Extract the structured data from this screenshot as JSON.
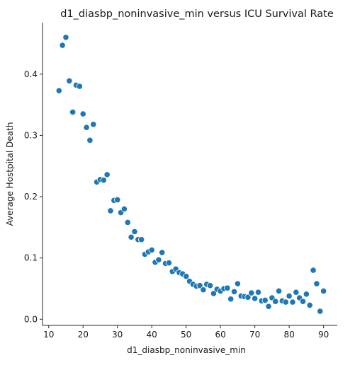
{
  "chart_data": {
    "type": "scatter",
    "title": "d1_diasbp_noninvasive_min versus ICU Survival Rate",
    "xlabel": "d1_diasbp_noninvasive_min",
    "ylabel": "Average Hostpital Death",
    "xlim": [
      8.2,
      94.0
    ],
    "ylim": [
      -0.01,
      0.484
    ],
    "xticks": [
      10,
      20,
      30,
      40,
      50,
      60,
      70,
      80,
      90
    ],
    "yticks": [
      0.0,
      0.1,
      0.2,
      0.3,
      0.4
    ],
    "ytick_labels": [
      "0.0",
      "0.1",
      "0.2",
      "0.3",
      "0.4"
    ],
    "grid": false,
    "marker_color": "#1f77b4",
    "points": [
      {
        "x": 13,
        "y": 0.373
      },
      {
        "x": 14,
        "y": 0.447
      },
      {
        "x": 15,
        "y": 0.46
      },
      {
        "x": 16,
        "y": 0.389
      },
      {
        "x": 17,
        "y": 0.338
      },
      {
        "x": 18,
        "y": 0.382
      },
      {
        "x": 19,
        "y": 0.38
      },
      {
        "x": 20,
        "y": 0.335
      },
      {
        "x": 21,
        "y": 0.313
      },
      {
        "x": 22,
        "y": 0.292
      },
      {
        "x": 23,
        "y": 0.318
      },
      {
        "x": 24,
        "y": 0.224
      },
      {
        "x": 25,
        "y": 0.228
      },
      {
        "x": 26,
        "y": 0.227
      },
      {
        "x": 27,
        "y": 0.236
      },
      {
        "x": 28,
        "y": 0.177
      },
      {
        "x": 29,
        "y": 0.194
      },
      {
        "x": 30,
        "y": 0.195
      },
      {
        "x": 31,
        "y": 0.174
      },
      {
        "x": 32,
        "y": 0.18
      },
      {
        "x": 33,
        "y": 0.158
      },
      {
        "x": 34,
        "y": 0.134
      },
      {
        "x": 35,
        "y": 0.143
      },
      {
        "x": 36,
        "y": 0.13
      },
      {
        "x": 37,
        "y": 0.13
      },
      {
        "x": 38,
        "y": 0.106
      },
      {
        "x": 39,
        "y": 0.11
      },
      {
        "x": 40,
        "y": 0.113
      },
      {
        "x": 41,
        "y": 0.093
      },
      {
        "x": 42,
        "y": 0.097
      },
      {
        "x": 43,
        "y": 0.109
      },
      {
        "x": 44,
        "y": 0.091
      },
      {
        "x": 45,
        "y": 0.092
      },
      {
        "x": 46,
        "y": 0.078
      },
      {
        "x": 47,
        "y": 0.082
      },
      {
        "x": 48,
        "y": 0.076
      },
      {
        "x": 49,
        "y": 0.074
      },
      {
        "x": 50,
        "y": 0.07
      },
      {
        "x": 51,
        "y": 0.062
      },
      {
        "x": 52,
        "y": 0.057
      },
      {
        "x": 53,
        "y": 0.054
      },
      {
        "x": 54,
        "y": 0.055
      },
      {
        "x": 55,
        "y": 0.048
      },
      {
        "x": 56,
        "y": 0.057
      },
      {
        "x": 57,
        "y": 0.055
      },
      {
        "x": 58,
        "y": 0.042
      },
      {
        "x": 59,
        "y": 0.049
      },
      {
        "x": 60,
        "y": 0.046
      },
      {
        "x": 61,
        "y": 0.05
      },
      {
        "x": 62,
        "y": 0.051
      },
      {
        "x": 63,
        "y": 0.033
      },
      {
        "x": 64,
        "y": 0.045
      },
      {
        "x": 65,
        "y": 0.058
      },
      {
        "x": 66,
        "y": 0.038
      },
      {
        "x": 67,
        "y": 0.037
      },
      {
        "x": 68,
        "y": 0.036
      },
      {
        "x": 69,
        "y": 0.043
      },
      {
        "x": 70,
        "y": 0.034
      },
      {
        "x": 71,
        "y": 0.044
      },
      {
        "x": 72,
        "y": 0.03
      },
      {
        "x": 73,
        "y": 0.031
      },
      {
        "x": 74,
        "y": 0.021
      },
      {
        "x": 75,
        "y": 0.035
      },
      {
        "x": 76,
        "y": 0.029
      },
      {
        "x": 77,
        "y": 0.046
      },
      {
        "x": 78,
        "y": 0.03
      },
      {
        "x": 79,
        "y": 0.028
      },
      {
        "x": 80,
        "y": 0.038
      },
      {
        "x": 81,
        "y": 0.028
      },
      {
        "x": 82,
        "y": 0.044
      },
      {
        "x": 83,
        "y": 0.035
      },
      {
        "x": 84,
        "y": 0.029
      },
      {
        "x": 85,
        "y": 0.041
      },
      {
        "x": 86,
        "y": 0.023
      },
      {
        "x": 87,
        "y": 0.08
      },
      {
        "x": 88,
        "y": 0.058
      },
      {
        "x": 89,
        "y": 0.013
      },
      {
        "x": 90,
        "y": 0.046
      }
    ]
  }
}
